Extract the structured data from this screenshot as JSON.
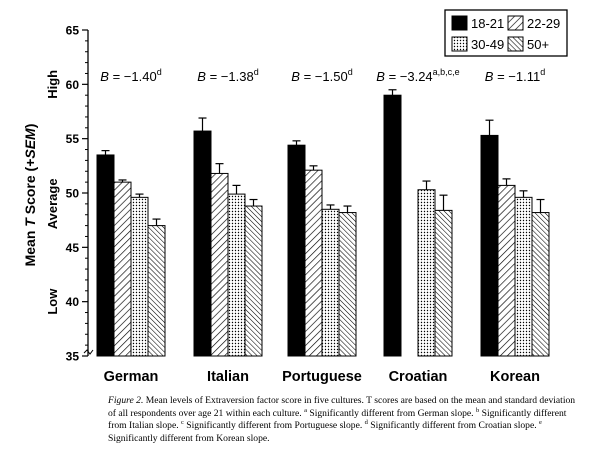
{
  "chart_data": {
    "type": "bar",
    "categories": [
      "German",
      "Italian",
      "Portuguese",
      "Croatian",
      "Korean"
    ],
    "series": [
      {
        "name": "18-21",
        "values": [
          53.5,
          55.7,
          54.4,
          59.0,
          55.3
        ],
        "sem": [
          0.4,
          1.2,
          0.4,
          0.5,
          1.4
        ],
        "pattern": "solid"
      },
      {
        "name": "22-29",
        "values": [
          51.0,
          51.8,
          52.1,
          null,
          50.7
        ],
        "sem": [
          0.2,
          0.9,
          0.4,
          null,
          0.6
        ],
        "pattern": "diagonal"
      },
      {
        "name": "30-49",
        "values": [
          49.6,
          49.9,
          48.5,
          50.3,
          49.6
        ],
        "sem": [
          0.3,
          0.8,
          0.4,
          0.8,
          0.6
        ],
        "pattern": "dots"
      },
      {
        "name": "50+",
        "values": [
          47.0,
          48.8,
          48.2,
          48.4,
          48.2
        ],
        "sem": [
          0.6,
          0.6,
          0.6,
          1.4,
          1.2
        ],
        "pattern": "hatch"
      }
    ],
    "ylim": [
      35,
      65
    ],
    "yticks": [
      35,
      40,
      45,
      50,
      55,
      60,
      65
    ],
    "ylabel": "Mean T Score (+SEM)",
    "ylabel_parts": [
      "Mean ",
      "T",
      " Score (+",
      "SEM",
      ")"
    ],
    "level_labels": [
      {
        "text": "High",
        "y": 60
      },
      {
        "text": "Average",
        "y": 49
      },
      {
        "text": "Low",
        "y": 40
      }
    ],
    "annotations": [
      {
        "prefix": "B",
        "text": " = −1.40",
        "sup": "d"
      },
      {
        "prefix": "B",
        "text": " = −1.38",
        "sup": "d"
      },
      {
        "prefix": "B",
        "text": " = −1.50",
        "sup": "d"
      },
      {
        "prefix": "B",
        "text": " = −3.24",
        "sup": "a,b,c,e"
      },
      {
        "prefix": "B",
        "text": " = −1.11",
        "sup": "d"
      }
    ],
    "legend_position": "top-right",
    "grid": false
  },
  "caption": {
    "label": "Figure 2.",
    "text": "Mean levels of Extraversion factor score in five cultures. T scores are based on the mean and standard deviation of all respondents over age 21 within each culture. ",
    "notes": [
      {
        "sup": "a",
        "text": " Significantly different from German slope. "
      },
      {
        "sup": "b",
        "text": " Significantly different from Italian slope. "
      },
      {
        "sup": "c",
        "text": " Significantly different from Portuguese slope. "
      },
      {
        "sup": "d",
        "text": " Significantly different from Croatian slope. "
      },
      {
        "sup": "e",
        "text": " Significantly different from Korean slope."
      }
    ]
  }
}
